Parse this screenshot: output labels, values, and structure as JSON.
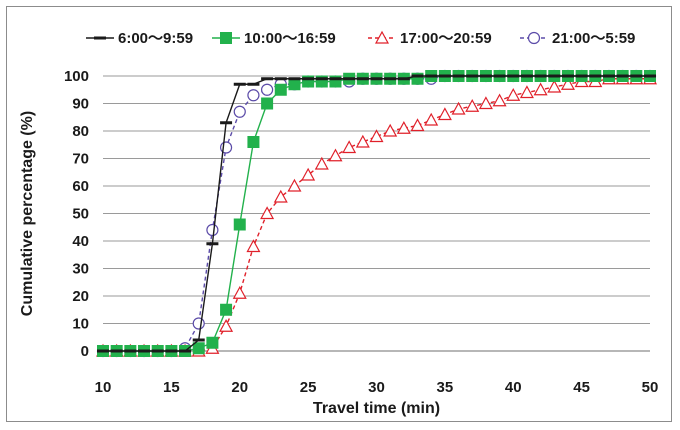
{
  "chart_data": {
    "type": "line",
    "title": "",
    "xlabel": "Travel time (min)",
    "ylabel": "Cumulative percentage (%)",
    "xlim": [
      10,
      50
    ],
    "ylim": [
      0,
      100
    ],
    "xticks": [
      "10",
      "15",
      "20",
      "25",
      "30",
      "35",
      "40",
      "45",
      "50"
    ],
    "yticks": [
      "0",
      "10",
      "20",
      "30",
      "40",
      "50",
      "60",
      "70",
      "80",
      "90",
      "100"
    ],
    "grid": "horizontal",
    "legend_position": "top",
    "series": [
      {
        "name": "6:00～9:59",
        "color": "#1a1a1a",
        "marker": "dash",
        "line": "solid",
        "x": [
          10,
          11,
          12,
          13,
          14,
          15,
          16,
          17,
          18,
          19,
          20,
          21,
          22,
          23,
          24,
          25,
          26,
          27,
          28,
          29,
          30,
          31,
          32,
          33,
          34,
          35,
          36,
          37,
          38,
          39,
          40,
          41,
          42,
          43,
          44,
          45,
          46,
          47,
          48,
          49,
          50
        ],
        "y": [
          0,
          0,
          0,
          0,
          0,
          0,
          0,
          4,
          39,
          83,
          97,
          97,
          99,
          99,
          99,
          99,
          99,
          99,
          99,
          99,
          99,
          99,
          99,
          100,
          100,
          100,
          100,
          100,
          100,
          100,
          100,
          100,
          100,
          100,
          100,
          100,
          100,
          100,
          100,
          100,
          100
        ]
      },
      {
        "name": "10:00～16:59",
        "color": "#22b14c",
        "marker": "square",
        "line": "solid",
        "x": [
          10,
          11,
          12,
          13,
          14,
          15,
          16,
          17,
          18,
          19,
          20,
          21,
          22,
          23,
          24,
          25,
          26,
          27,
          28,
          29,
          30,
          31,
          32,
          33,
          34,
          35,
          36,
          37,
          38,
          39,
          40,
          41,
          42,
          43,
          44,
          45,
          46,
          47,
          48,
          49,
          50
        ],
        "y": [
          0,
          0,
          0,
          0,
          0,
          0,
          0,
          1,
          3,
          15,
          46,
          76,
          90,
          95,
          97,
          98,
          98,
          98,
          99,
          99,
          99,
          99,
          99,
          99,
          100,
          100,
          100,
          100,
          100,
          100,
          100,
          100,
          100,
          100,
          100,
          100,
          100,
          100,
          100,
          100,
          100
        ]
      },
      {
        "name": "17:00～20:59",
        "color": "#e0202a",
        "marker": "triangle-open",
        "line": "dashed",
        "x": [
          10,
          11,
          12,
          13,
          14,
          15,
          16,
          17,
          18,
          19,
          20,
          21,
          22,
          23,
          24,
          25,
          26,
          27,
          28,
          29,
          30,
          31,
          32,
          33,
          34,
          35,
          36,
          37,
          38,
          39,
          40,
          41,
          42,
          43,
          44,
          45,
          46,
          47,
          48,
          49,
          50
        ],
        "y": [
          0,
          0,
          0,
          0,
          0,
          0,
          0,
          0,
          1,
          9,
          21,
          38,
          50,
          56,
          60,
          64,
          68,
          71,
          74,
          76,
          78,
          80,
          81,
          82,
          84,
          86,
          88,
          89,
          90,
          91,
          93,
          94,
          95,
          96,
          97,
          98,
          98,
          99,
          99,
          99,
          99
        ]
      },
      {
        "name": "21:00～5:59",
        "color": "#5b4ba8",
        "marker": "circle-open",
        "line": "dashed",
        "x": [
          10,
          11,
          12,
          13,
          14,
          15,
          16,
          17,
          18,
          19,
          20,
          21,
          22,
          23,
          24,
          25,
          26,
          27,
          28,
          29,
          30,
          31,
          32,
          33,
          34,
          35,
          36,
          37,
          38,
          39,
          40,
          41,
          42,
          43,
          44,
          45,
          46,
          47,
          48,
          49,
          50
        ],
        "y": [
          0,
          0,
          0,
          0,
          0,
          0,
          1,
          10,
          44,
          74,
          87,
          93,
          95,
          97,
          97,
          98,
          98,
          98,
          98,
          99,
          99,
          99,
          99,
          99,
          99,
          100,
          100,
          100,
          100,
          100,
          100,
          100,
          100,
          100,
          100,
          100,
          100,
          100,
          100,
          100,
          100
        ]
      }
    ]
  }
}
